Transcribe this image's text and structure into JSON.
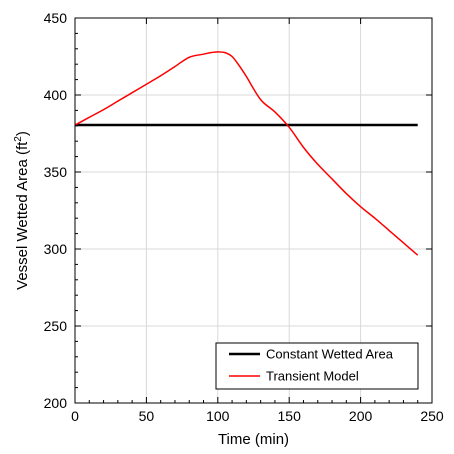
{
  "chart_data": {
    "type": "line",
    "xlabel": "Time (min)",
    "ylabel_main": "Vessel Wetted Area (ft",
    "ylabel_sup": "2",
    "ylabel_close": ")",
    "xlim": [
      0,
      250
    ],
    "ylim": [
      200,
      450
    ],
    "xticks": [
      0,
      50,
      100,
      150,
      200,
      250
    ],
    "yticks": [
      200,
      250,
      300,
      350,
      400,
      450
    ],
    "grid": true,
    "legend_position": "bottom-right",
    "series": [
      {
        "name": "Constant Wetted Area",
        "color": "#000000",
        "x": [
          0,
          240
        ],
        "y": [
          380.5,
          380.5
        ]
      },
      {
        "name": "Transient Model",
        "color": "#ff0000",
        "x": [
          0,
          10,
          20,
          30,
          40,
          50,
          60,
          70,
          80,
          90,
          95,
          100,
          105,
          110,
          115,
          120,
          130,
          140,
          150,
          160,
          170,
          180,
          190,
          200,
          210,
          220,
          230,
          240
        ],
        "y": [
          380.5,
          385.5,
          390.5,
          396,
          401.5,
          407,
          412.5,
          418.5,
          424.5,
          426.5,
          427.5,
          428,
          427.5,
          425,
          419,
          412,
          397,
          389,
          379,
          366,
          355,
          345.5,
          336,
          327.5,
          320,
          312,
          304,
          296
        ]
      }
    ]
  }
}
